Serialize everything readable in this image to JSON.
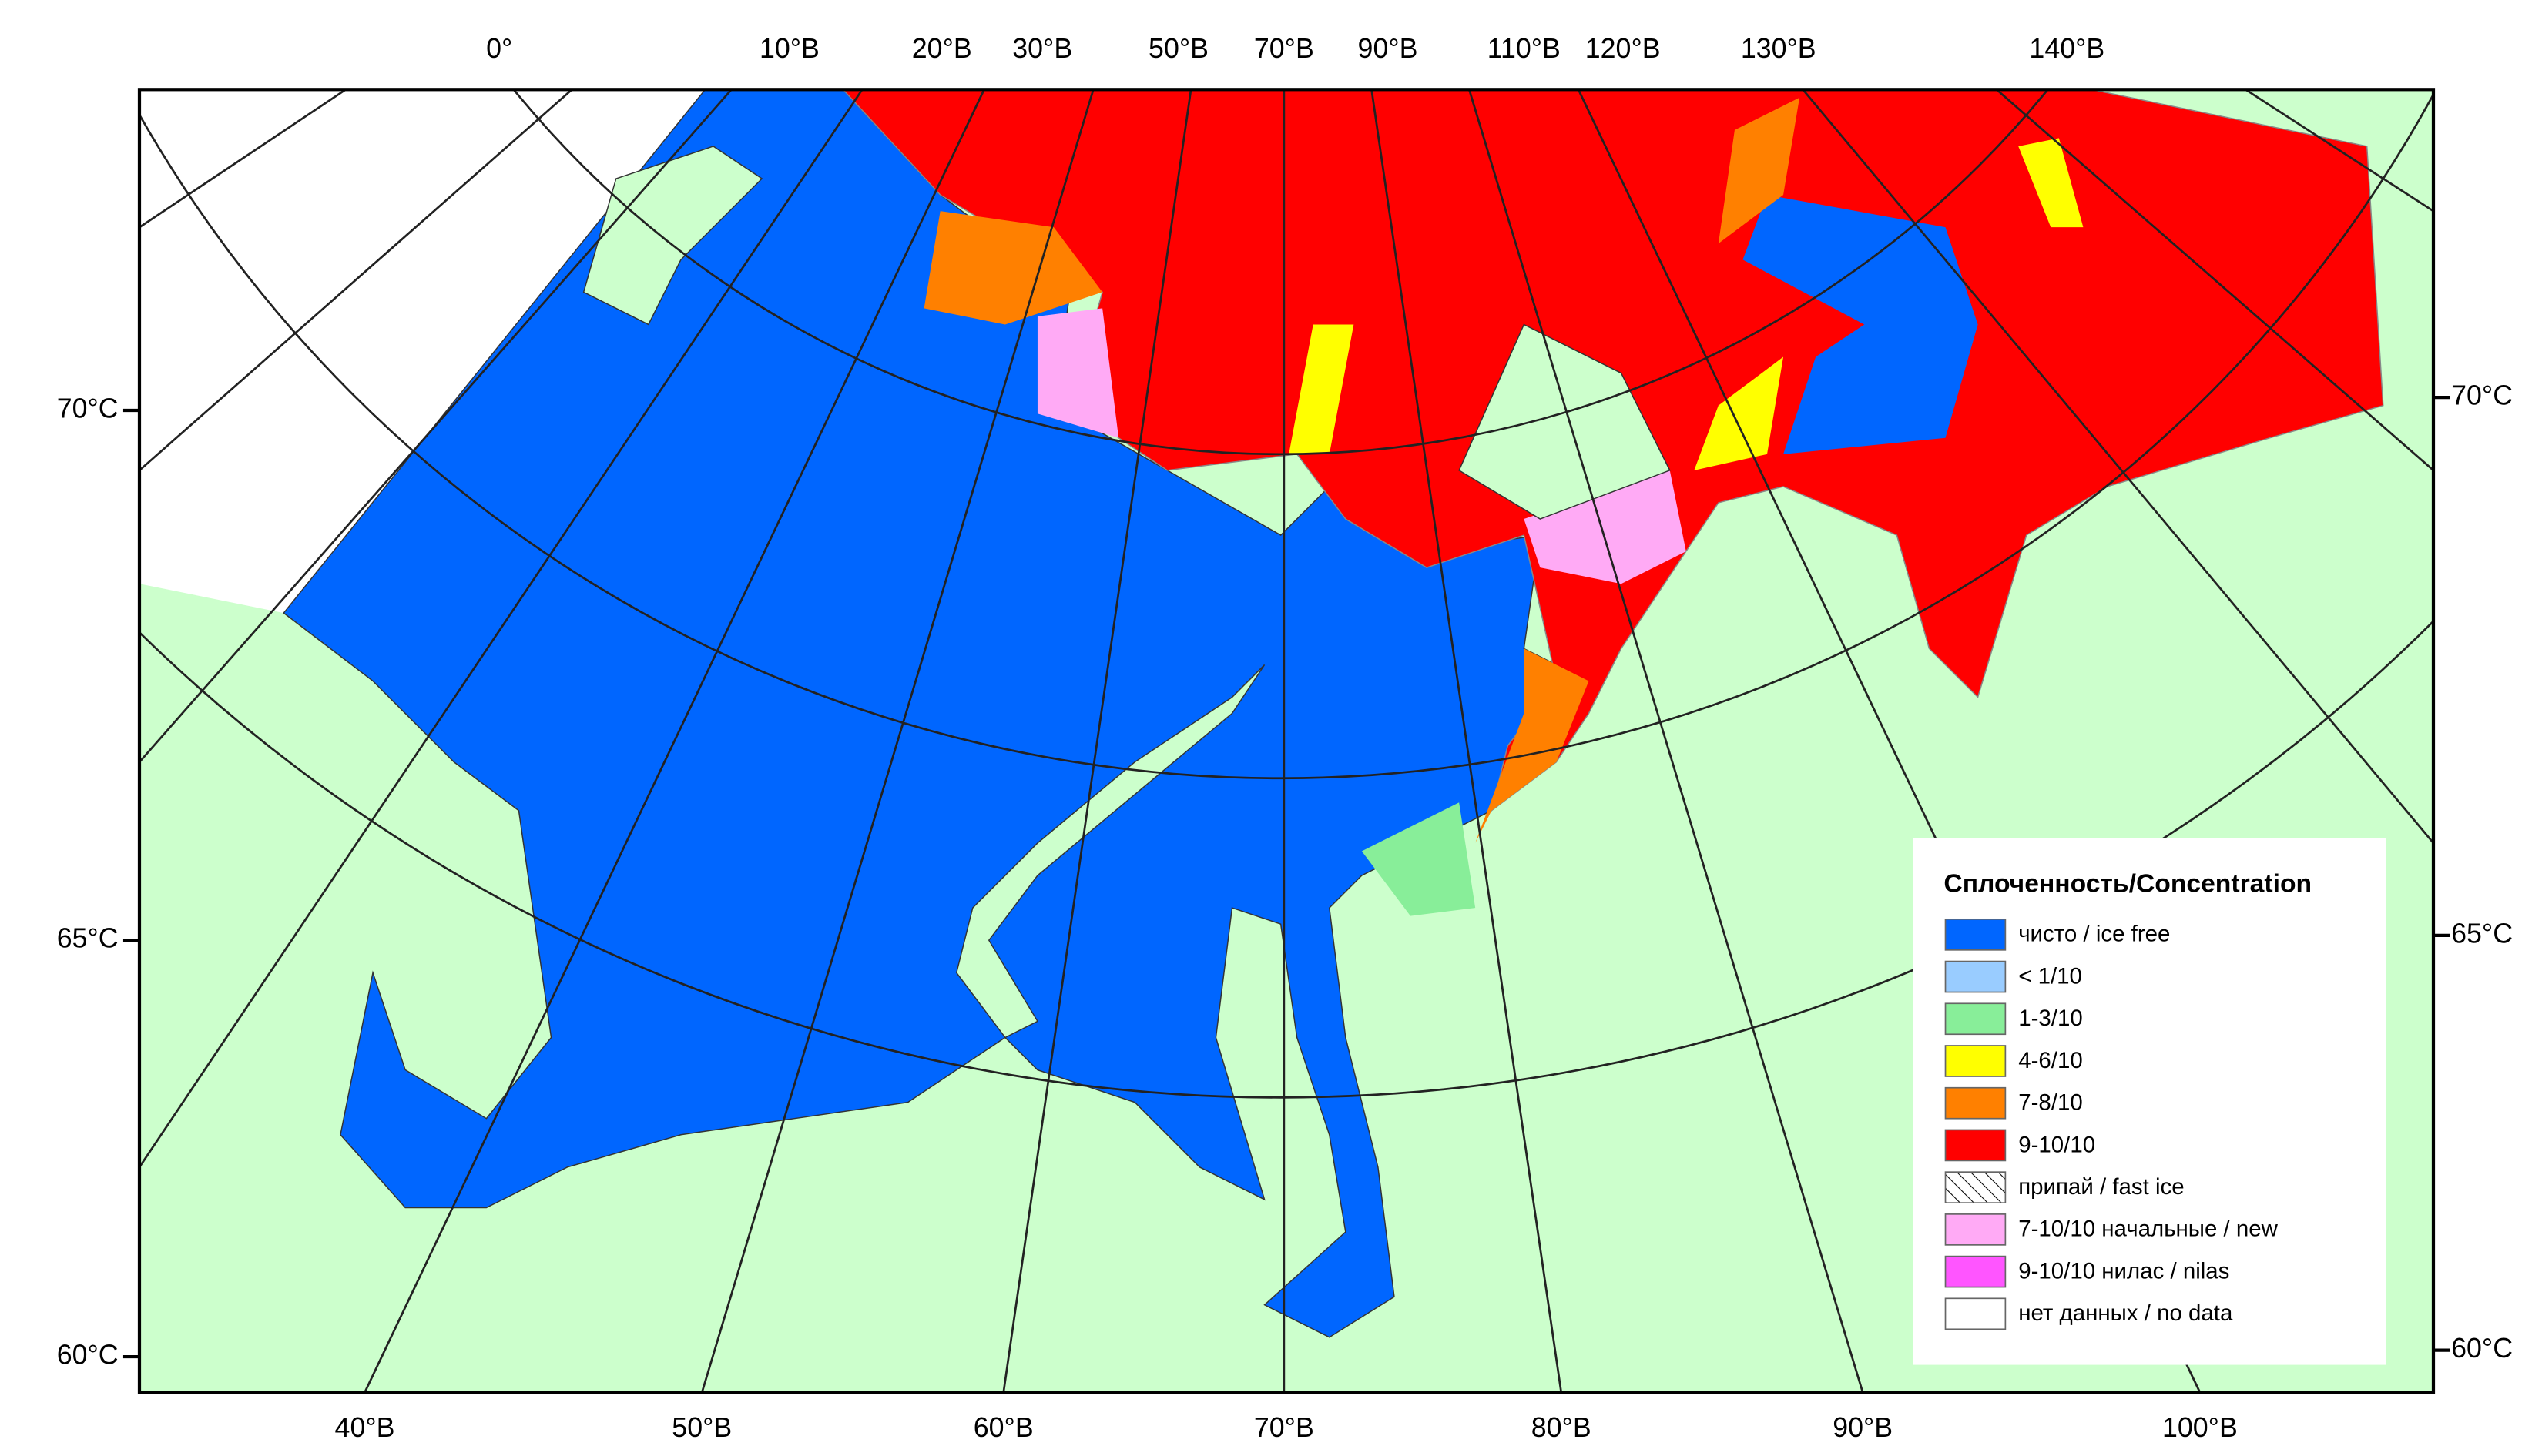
{
  "map": {
    "top_labels": [
      "0°",
      "10°В",
      "20°В",
      "30°В",
      "50°В",
      "70°В",
      "90°В",
      "110°В",
      "120°В",
      "130°В",
      "140°В"
    ],
    "bottom_labels": [
      "40°В",
      "50°В",
      "60°В",
      "70°В",
      "80°В",
      "90°В",
      "100°В"
    ],
    "left_labels": [
      "70°С",
      "65°С",
      "60°С"
    ],
    "right_labels": [
      "70°С",
      "65°С",
      "60°С"
    ]
  },
  "legend": {
    "title": "Сплоченность/Concentration",
    "items": [
      {
        "label": "чисто / ice free",
        "color": "#0066ff"
      },
      {
        "label": "< 1/10",
        "color": "#99ccff"
      },
      {
        "label": "1-3/10",
        "color": "#88ee99"
      },
      {
        "label": "4-6/10",
        "color": "#ffff00"
      },
      {
        "label": "7-8/10",
        "color": "#ff8000"
      },
      {
        "label": "9-10/10",
        "color": "#ff0000"
      },
      {
        "label": "припай / fast ice",
        "color": "#ffffff",
        "hatch": true
      },
      {
        "label": "7-10/10 начальные / new",
        "color": "#ffaaf5"
      },
      {
        "label": "9-10/10 нилас / nilas",
        "color": "#ff55ff"
      },
      {
        "label": "нет данных / no data",
        "color": "#ffffff"
      }
    ]
  }
}
